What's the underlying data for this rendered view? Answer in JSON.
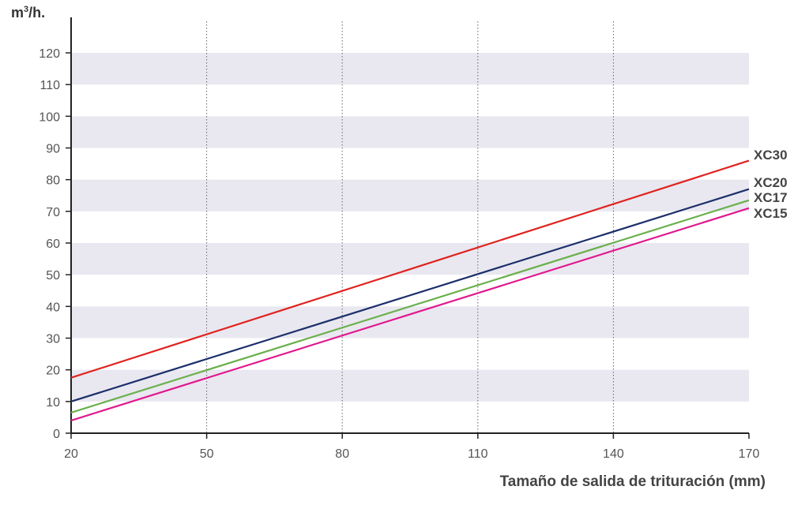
{
  "chart_data": {
    "type": "line",
    "ylabel_base": "m",
    "ylabel_sup": "3",
    "ylabel_tail": "/h.",
    "xlabel": "Tamaño de salida de trituración (mm)",
    "xlim": [
      20,
      170
    ],
    "ylim": [
      0,
      125
    ],
    "x_ticks": [
      "20",
      "50",
      "80",
      "110",
      "140",
      "170"
    ],
    "y_ticks": [
      "0",
      "10",
      "20",
      "30",
      "40",
      "50",
      "60",
      "70",
      "80",
      "90",
      "100",
      "110",
      "120"
    ],
    "grid": "horizontal bands, vertical dotted lines",
    "series": [
      {
        "name": "XC30",
        "color": "#e0231f",
        "x": [
          20,
          170
        ],
        "y": [
          17.5,
          86
        ]
      },
      {
        "name": "XC20",
        "color": "#1c2f6b",
        "x": [
          20,
          170
        ],
        "y": [
          10,
          77
        ]
      },
      {
        "name": "XC17",
        "color": "#6ab04c",
        "x": [
          20,
          170
        ],
        "y": [
          6.5,
          73.5
        ]
      },
      {
        "name": "XC15",
        "color": "#e0198f",
        "x": [
          20,
          170
        ],
        "y": [
          4,
          71
        ]
      }
    ]
  }
}
